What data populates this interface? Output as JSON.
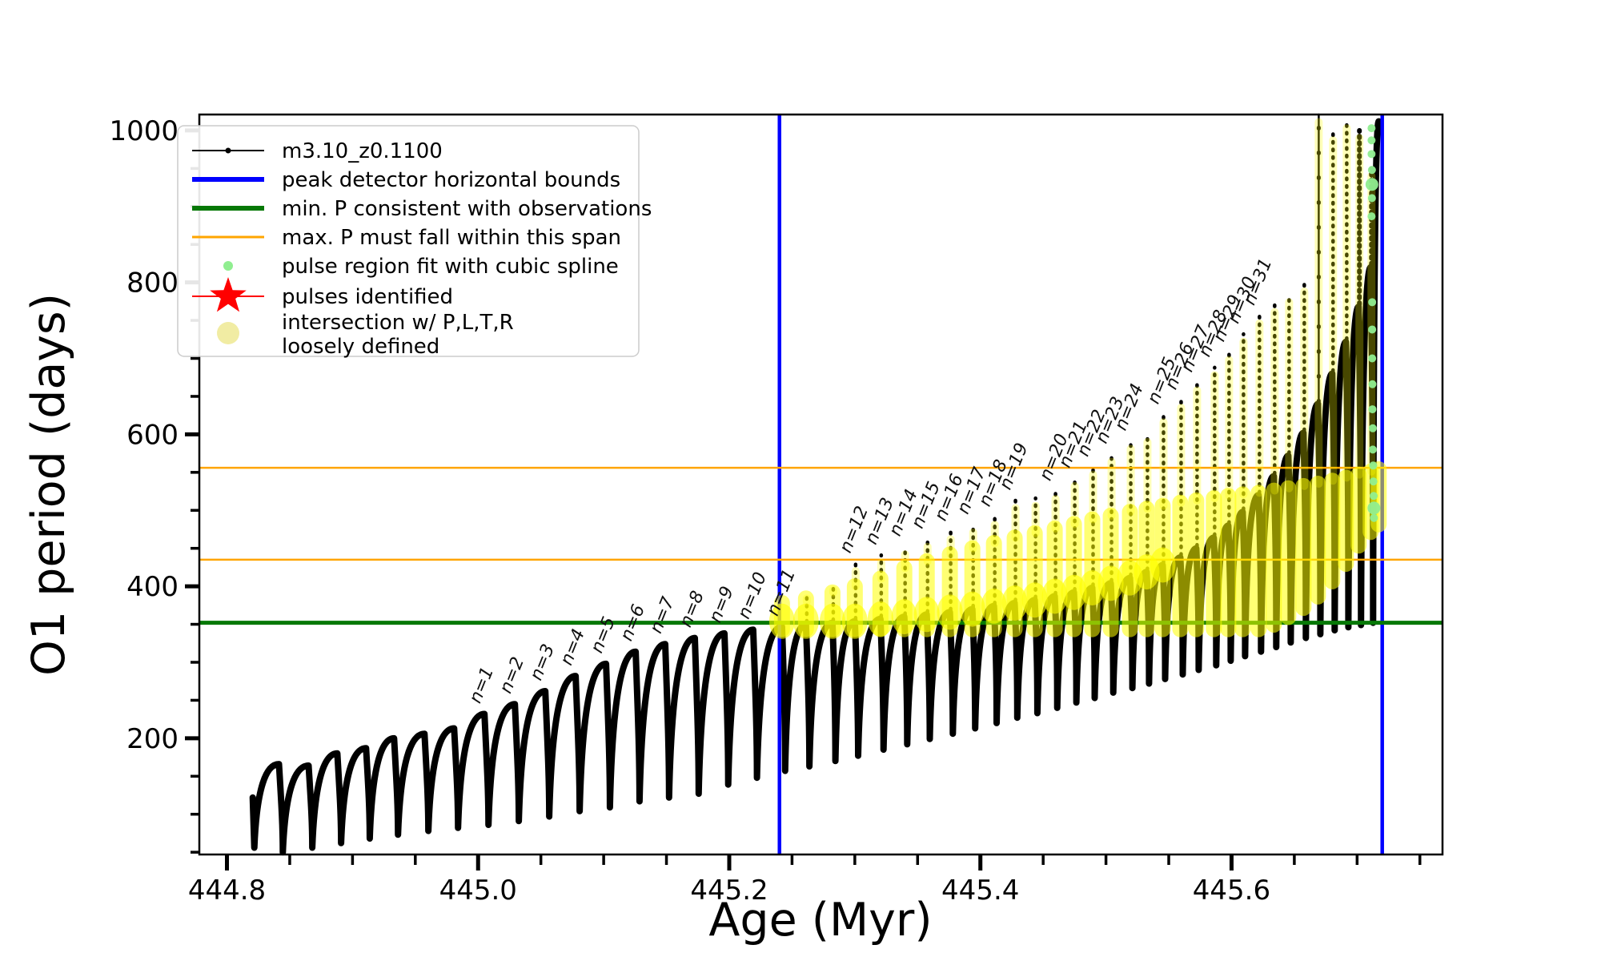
{
  "chart_data": {
    "type": "line",
    "title": "",
    "xlabel": "Age (Myr)",
    "ylabel": "O1 period (days)",
    "xlim": [
      444.778,
      445.768
    ],
    "ylim": [
      47,
      1021
    ],
    "grid": false,
    "xticks": {
      "major": [
        444.8,
        445.0,
        445.2,
        445.4,
        445.6
      ],
      "labels": [
        "444.8",
        "445.0",
        "445.2",
        "445.4",
        "445.6"
      ],
      "minor_step": 0.05
    },
    "yticks": {
      "major": [
        200,
        400,
        600,
        800,
        1000
      ],
      "labels": [
        "200",
        "400",
        "600",
        "800",
        "1000"
      ],
      "minor_step": 50
    },
    "colors": {
      "curve": "#000000",
      "bounds": "#0000ff",
      "min_p": "#067806",
      "max_p": "#ffa500",
      "spline_dot": "#90ee90",
      "pulse_star": "#ff0000",
      "intersection": "#ffff00",
      "intersection_legend": "#f1eca3"
    },
    "legend": {
      "position": "upper left",
      "entries": [
        {
          "label": "m3.10_z0.1100",
          "type": "line-dot",
          "color": "#000000"
        },
        {
          "label": "peak detector horizontal bounds",
          "type": "thick-line",
          "color": "#0000ff"
        },
        {
          "label": "min. P consistent with observations",
          "type": "thick-line",
          "color": "#067806"
        },
        {
          "label": "max. P must fall within this span",
          "type": "thin-line",
          "color": "#ffa500"
        },
        {
          "label": "pulse region fit with cubic spline",
          "type": "dot-small",
          "color": "#90ee90"
        },
        {
          "label": "pulses identified",
          "type": "star-line",
          "color": "#ff0000"
        },
        {
          "label": "intersection w/ P,L,T,R",
          "label2": "loosely defined",
          "type": "dot-big",
          "color": "#f1eca3"
        }
      ]
    },
    "annotations": {
      "peak_detector_bounds_x": [
        445.24,
        445.72
      ],
      "min_p_line_y": 352,
      "max_p_span_y": [
        556,
        435
      ]
    },
    "series_start": {
      "t": 444.8205,
      "p": 122,
      "drop_to": 56
    },
    "teeth": [
      {
        "t": 444.8414,
        "peak": 166,
        "min": 50,
        "spike": null,
        "ytop": null,
        "ybase": null,
        "label": null,
        "style": null
      },
      {
        "t": 444.865,
        "peak": 164,
        "min": 56,
        "spike": null,
        "ytop": null,
        "ybase": null,
        "label": null,
        "style": null
      },
      {
        "t": 444.8879,
        "peak": 180,
        "min": 62,
        "spike": null,
        "ytop": null,
        "ybase": null,
        "label": null,
        "style": null
      },
      {
        "t": 444.9108,
        "peak": 187,
        "min": 68,
        "spike": null,
        "ytop": null,
        "ybase": null,
        "label": null,
        "style": null
      },
      {
        "t": 444.9331,
        "peak": 200,
        "min": 73,
        "spike": null,
        "ytop": null,
        "ybase": null,
        "label": null,
        "style": null
      },
      {
        "t": 444.9573,
        "peak": 206,
        "min": 78,
        "spike": null,
        "ytop": null,
        "ybase": null,
        "label": null,
        "style": null
      },
      {
        "t": 444.9809,
        "peak": 213,
        "min": 82,
        "spike": null,
        "ytop": null,
        "ybase": null,
        "label": null,
        "style": null
      },
      {
        "t": 445.0051,
        "peak": 232,
        "min": 86,
        "spike": null,
        "ytop": null,
        "ybase": null,
        "label": "n=1",
        "style": null
      },
      {
        "t": 445.0293,
        "peak": 245,
        "min": 91,
        "spike": null,
        "ytop": null,
        "ybase": null,
        "label": "n=2",
        "style": null
      },
      {
        "t": 445.0535,
        "peak": 262,
        "min": 97,
        "spike": null,
        "ytop": null,
        "ybase": null,
        "label": "n=3",
        "style": null
      },
      {
        "t": 445.0777,
        "peak": 282,
        "min": 104,
        "spike": null,
        "ytop": null,
        "ybase": null,
        "label": "n=4",
        "style": null
      },
      {
        "t": 445.1019,
        "peak": 298,
        "min": 109,
        "spike": null,
        "ytop": null,
        "ybase": null,
        "label": "n=5",
        "style": null
      },
      {
        "t": 445.1255,
        "peak": 314,
        "min": 117,
        "spike": null,
        "ytop": null,
        "ybase": null,
        "label": "n=6",
        "style": null
      },
      {
        "t": 445.149,
        "peak": 324,
        "min": 122,
        "spike": null,
        "ytop": null,
        "ybase": null,
        "label": "n=7",
        "style": null
      },
      {
        "t": 445.1726,
        "peak": 332,
        "min": 127,
        "spike": null,
        "ytop": null,
        "ybase": null,
        "label": "n=8",
        "style": null
      },
      {
        "t": 445.1962,
        "peak": 338,
        "min": 139,
        "spike": null,
        "ytop": null,
        "ybase": null,
        "label": "n=9",
        "style": null
      },
      {
        "t": 445.2191,
        "peak": 343,
        "min": 148,
        "spike": null,
        "ytop": null,
        "ybase": null,
        "label": "n=10",
        "style": null
      },
      {
        "t": 445.242,
        "peak": 347,
        "min": 157,
        "spike": null,
        "ytop": 378,
        "ybase": null,
        "label": "n=11",
        "style": null
      },
      {
        "t": 445.2611,
        "peak": 350,
        "min": 163,
        "spike": 390,
        "ytop": 384,
        "ybase": null,
        "label": null,
        "style": null
      },
      {
        "t": 445.2822,
        "peak": 352,
        "min": 170,
        "spike": 405,
        "ytop": 392,
        "ybase": null,
        "label": null,
        "style": null
      },
      {
        "t": 445.3,
        "peak": 354,
        "min": 177,
        "spike": 430,
        "ytop": 400,
        "ybase": null,
        "label": "n=12",
        "style": null
      },
      {
        "t": 445.3204,
        "peak": 357,
        "min": 185,
        "spike": 441,
        "ytop": 410,
        "ybase": null,
        "label": "n=13",
        "style": null
      },
      {
        "t": 445.3394,
        "peak": 360,
        "min": 192,
        "spike": 452,
        "ytop": 424,
        "ybase": null,
        "label": "n=14",
        "style": null
      },
      {
        "t": 445.3573,
        "peak": 363,
        "min": 199,
        "spike": 462,
        "ytop": 433,
        "ybase": null,
        "label": "n=15",
        "style": null
      },
      {
        "t": 445.3757,
        "peak": 366,
        "min": 206,
        "spike": 472,
        "ytop": 442,
        "ybase": null,
        "label": "n=16",
        "style": null
      },
      {
        "t": 445.3936,
        "peak": 370,
        "min": 213,
        "spike": 481,
        "ytop": 450,
        "ybase": null,
        "label": "n=17",
        "style": null
      },
      {
        "t": 445.4108,
        "peak": 374,
        "min": 220,
        "spike": 491,
        "ytop": 457,
        "ybase": null,
        "label": "n=18",
        "style": null
      },
      {
        "t": 445.4273,
        "peak": 378,
        "min": 227,
        "spike": 513,
        "ytop": 464,
        "ybase": null,
        "label": "n=19",
        "style": null
      },
      {
        "t": 445.4433,
        "peak": 382,
        "min": 233,
        "spike": 516,
        "ytop": 470,
        "ybase": null,
        "label": null,
        "style": null
      },
      {
        "t": 445.4592,
        "peak": 387,
        "min": 240,
        "spike": 525,
        "ytop": 476,
        "ybase": null,
        "label": "n=20",
        "style": null
      },
      {
        "t": 445.4745,
        "peak": 392,
        "min": 247,
        "spike": 542,
        "ytop": 482,
        "ybase": null,
        "label": "n=21",
        "style": null
      },
      {
        "t": 445.4891,
        "peak": 398,
        "min": 253,
        "spike": 557,
        "ytop": 488,
        "ybase": null,
        "label": "n=22",
        "style": null
      },
      {
        "t": 445.5038,
        "peak": 404,
        "min": 260,
        "spike": 574,
        "ytop": 493,
        "ybase": null,
        "label": "n=23",
        "style": null
      },
      {
        "t": 445.5191,
        "peak": 411,
        "min": 266,
        "spike": 591,
        "ytop": 498,
        "ybase": null,
        "label": "n=24",
        "style": null
      },
      {
        "t": 445.5324,
        "peak": 419,
        "min": 272,
        "spike": 600,
        "ytop": 502,
        "ybase": null,
        "label": null,
        "style": null
      },
      {
        "t": 445.5452,
        "peak": 428,
        "min": 278,
        "spike": 626,
        "ytop": 506,
        "ybase": null,
        "label": "n=25",
        "style": null
      },
      {
        "t": 445.5592,
        "peak": 438,
        "min": 284,
        "spike": 645,
        "ytop": 510,
        "ybase": null,
        "label": "n=26",
        "style": null
      },
      {
        "t": 445.5719,
        "peak": 450,
        "min": 290,
        "spike": 668,
        "ytop": 513,
        "ybase": null,
        "label": "n=27",
        "style": null
      },
      {
        "t": 445.5859,
        "peak": 464,
        "min": 296,
        "spike": 688,
        "ytop": 516,
        "ybase": null,
        "label": "n=28",
        "style": null
      },
      {
        "t": 445.5974,
        "peak": 480,
        "min": 302,
        "spike": 708,
        "ytop": 519,
        "ybase": null,
        "label": "n=29",
        "style": null
      },
      {
        "t": 445.6089,
        "peak": 498,
        "min": 308,
        "spike": 732,
        "ytop": 521,
        "ybase": null,
        "label": "n=30",
        "style": null
      },
      {
        "t": 445.6216,
        "peak": 520,
        "min": 314,
        "spike": 756,
        "ytop": 523,
        "ybase": null,
        "label": "n=31",
        "style": null
      },
      {
        "t": 445.6337,
        "peak": 545,
        "min": 320,
        "spike": 771,
        "ytop": 526,
        "ybase": 358,
        "label": null,
        "style": null
      },
      {
        "t": 445.6452,
        "peak": 572,
        "min": 326,
        "spike": 784,
        "ytop": 529,
        "ybase": 368,
        "label": null,
        "style": null
      },
      {
        "t": 445.6573,
        "peak": 602,
        "min": 332,
        "spike": 798,
        "ytop": 532,
        "ybase": 380,
        "label": null,
        "style": null
      },
      {
        "t": 445.6688,
        "peak": 640,
        "min": 337,
        "spike": 1021,
        "ytop": 535,
        "ybase": 395,
        "label": null,
        "style": "tall"
      },
      {
        "t": 445.6802,
        "peak": 680,
        "min": 342,
        "spike": 997,
        "ytop": 539,
        "ybase": 415,
        "label": null,
        "style": null
      },
      {
        "t": 445.6911,
        "peak": 722,
        "min": 346,
        "spike": 1013,
        "ytop": 543,
        "ybase": 438,
        "label": null,
        "style": null
      },
      {
        "t": 445.7012,
        "peak": 768,
        "min": 349,
        "spike": 1000,
        "ytop": 547,
        "ybase": 462,
        "label": null,
        "style": "dense"
      },
      {
        "t": 445.7108,
        "peak": 820,
        "min": 352,
        "spike": 950,
        "ytop": 551,
        "ybase": 480,
        "label": null,
        "style": "dense"
      },
      {
        "t": 445.7172,
        "peak": 1012,
        "min": null,
        "spike": null,
        "ytop": 554,
        "ybase": 490,
        "label": null,
        "style": null
      }
    ],
    "green_dots": [
      {
        "t": 445.7115,
        "p": 1003,
        "r": 5
      },
      {
        "t": 445.7115,
        "p": 987,
        "r": 5
      },
      {
        "t": 445.7115,
        "p": 969,
        "r": 5
      },
      {
        "t": 445.7118,
        "p": 948,
        "r": 5
      },
      {
        "t": 445.7118,
        "p": 929,
        "r": 8
      },
      {
        "t": 445.7118,
        "p": 911,
        "r": 5
      },
      {
        "t": 445.7115,
        "p": 887,
        "r": 5
      },
      {
        "t": 445.712,
        "p": 774,
        "r": 5
      },
      {
        "t": 445.712,
        "p": 738,
        "r": 5
      },
      {
        "t": 445.712,
        "p": 700,
        "r": 5
      },
      {
        "t": 445.7122,
        "p": 666,
        "r": 5
      },
      {
        "t": 445.7122,
        "p": 633,
        "r": 5
      },
      {
        "t": 445.7125,
        "p": 608,
        "r": 5
      },
      {
        "t": 445.7125,
        "p": 580,
        "r": 5
      },
      {
        "t": 445.7128,
        "p": 559,
        "r": 5
      },
      {
        "t": 445.713,
        "p": 538,
        "r": 5
      },
      {
        "t": 445.7132,
        "p": 519,
        "r": 5
      },
      {
        "t": 445.7134,
        "p": 503,
        "r": 8
      },
      {
        "t": 445.7134,
        "p": 490,
        "r": 5
      }
    ]
  }
}
